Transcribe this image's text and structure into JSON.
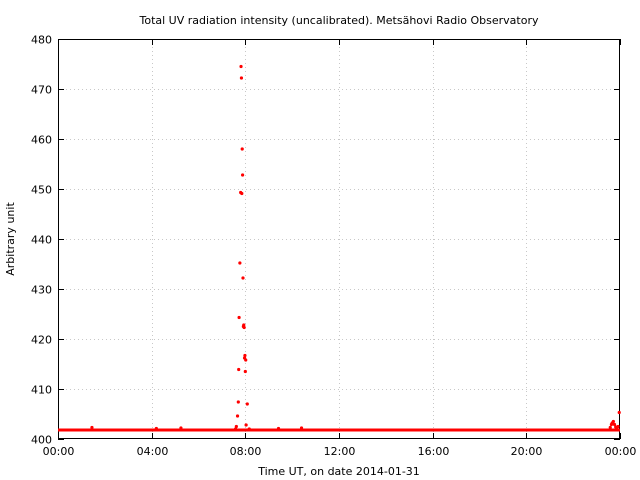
{
  "chart_data": {
    "type": "scatter",
    "title": "Total UV radiation intensity (uncalibrated). Metsähovi Radio Observatory",
    "xlabel": "Time UT, on date 2014-01-31",
    "ylabel": "Arbitrary unit",
    "xlim": [
      "00:00",
      "24:00"
    ],
    "ylim": [
      400,
      480
    ],
    "x_ticks": [
      "00:00",
      "04:00",
      "08:00",
      "12:00",
      "16:00",
      "20:00",
      "00:00"
    ],
    "y_ticks": [
      "400",
      "410",
      "420",
      "430",
      "440",
      "450",
      "460",
      "470",
      "480"
    ],
    "grid": true,
    "legend": "none",
    "marker_color": "#ff0000",
    "baseline": {
      "value": 401.8,
      "x_range": [
        "00:00",
        "24:00"
      ]
    },
    "series": [
      {
        "x": [
          "01:27",
          "04:12",
          "05:15",
          "07:35",
          "07:37",
          "07:40",
          "07:42",
          "07:43",
          "07:44",
          "07:46",
          "07:48",
          "07:49",
          "07:50",
          "07:51",
          "07:52",
          "07:53",
          "07:54",
          "07:55",
          "07:56",
          "07:57",
          "07:58",
          "07:59",
          "08:00",
          "08:01",
          "08:02",
          "08:05",
          "08:10",
          "09:25",
          "10:24",
          "23:35",
          "23:38",
          "23:40",
          "23:43",
          "23:46",
          "23:49",
          "23:52",
          "23:55",
          "23:58"
        ],
        "y": [
          402.3,
          402.1,
          402.2,
          402.0,
          402.5,
          404.6,
          407.4,
          413.9,
          424.3,
          435.2,
          449.3,
          474.5,
          472.2,
          449.1,
          458.0,
          452.8,
          432.2,
          422.5,
          422.8,
          422.3,
          416.2,
          416.7,
          413.5,
          415.8,
          402.8,
          407.0,
          402.0,
          402.1,
          402.2,
          402.3,
          402.9,
          403.2,
          403.5,
          402.9,
          402.4,
          402.2,
          402.5,
          405.3
        ]
      }
    ]
  }
}
